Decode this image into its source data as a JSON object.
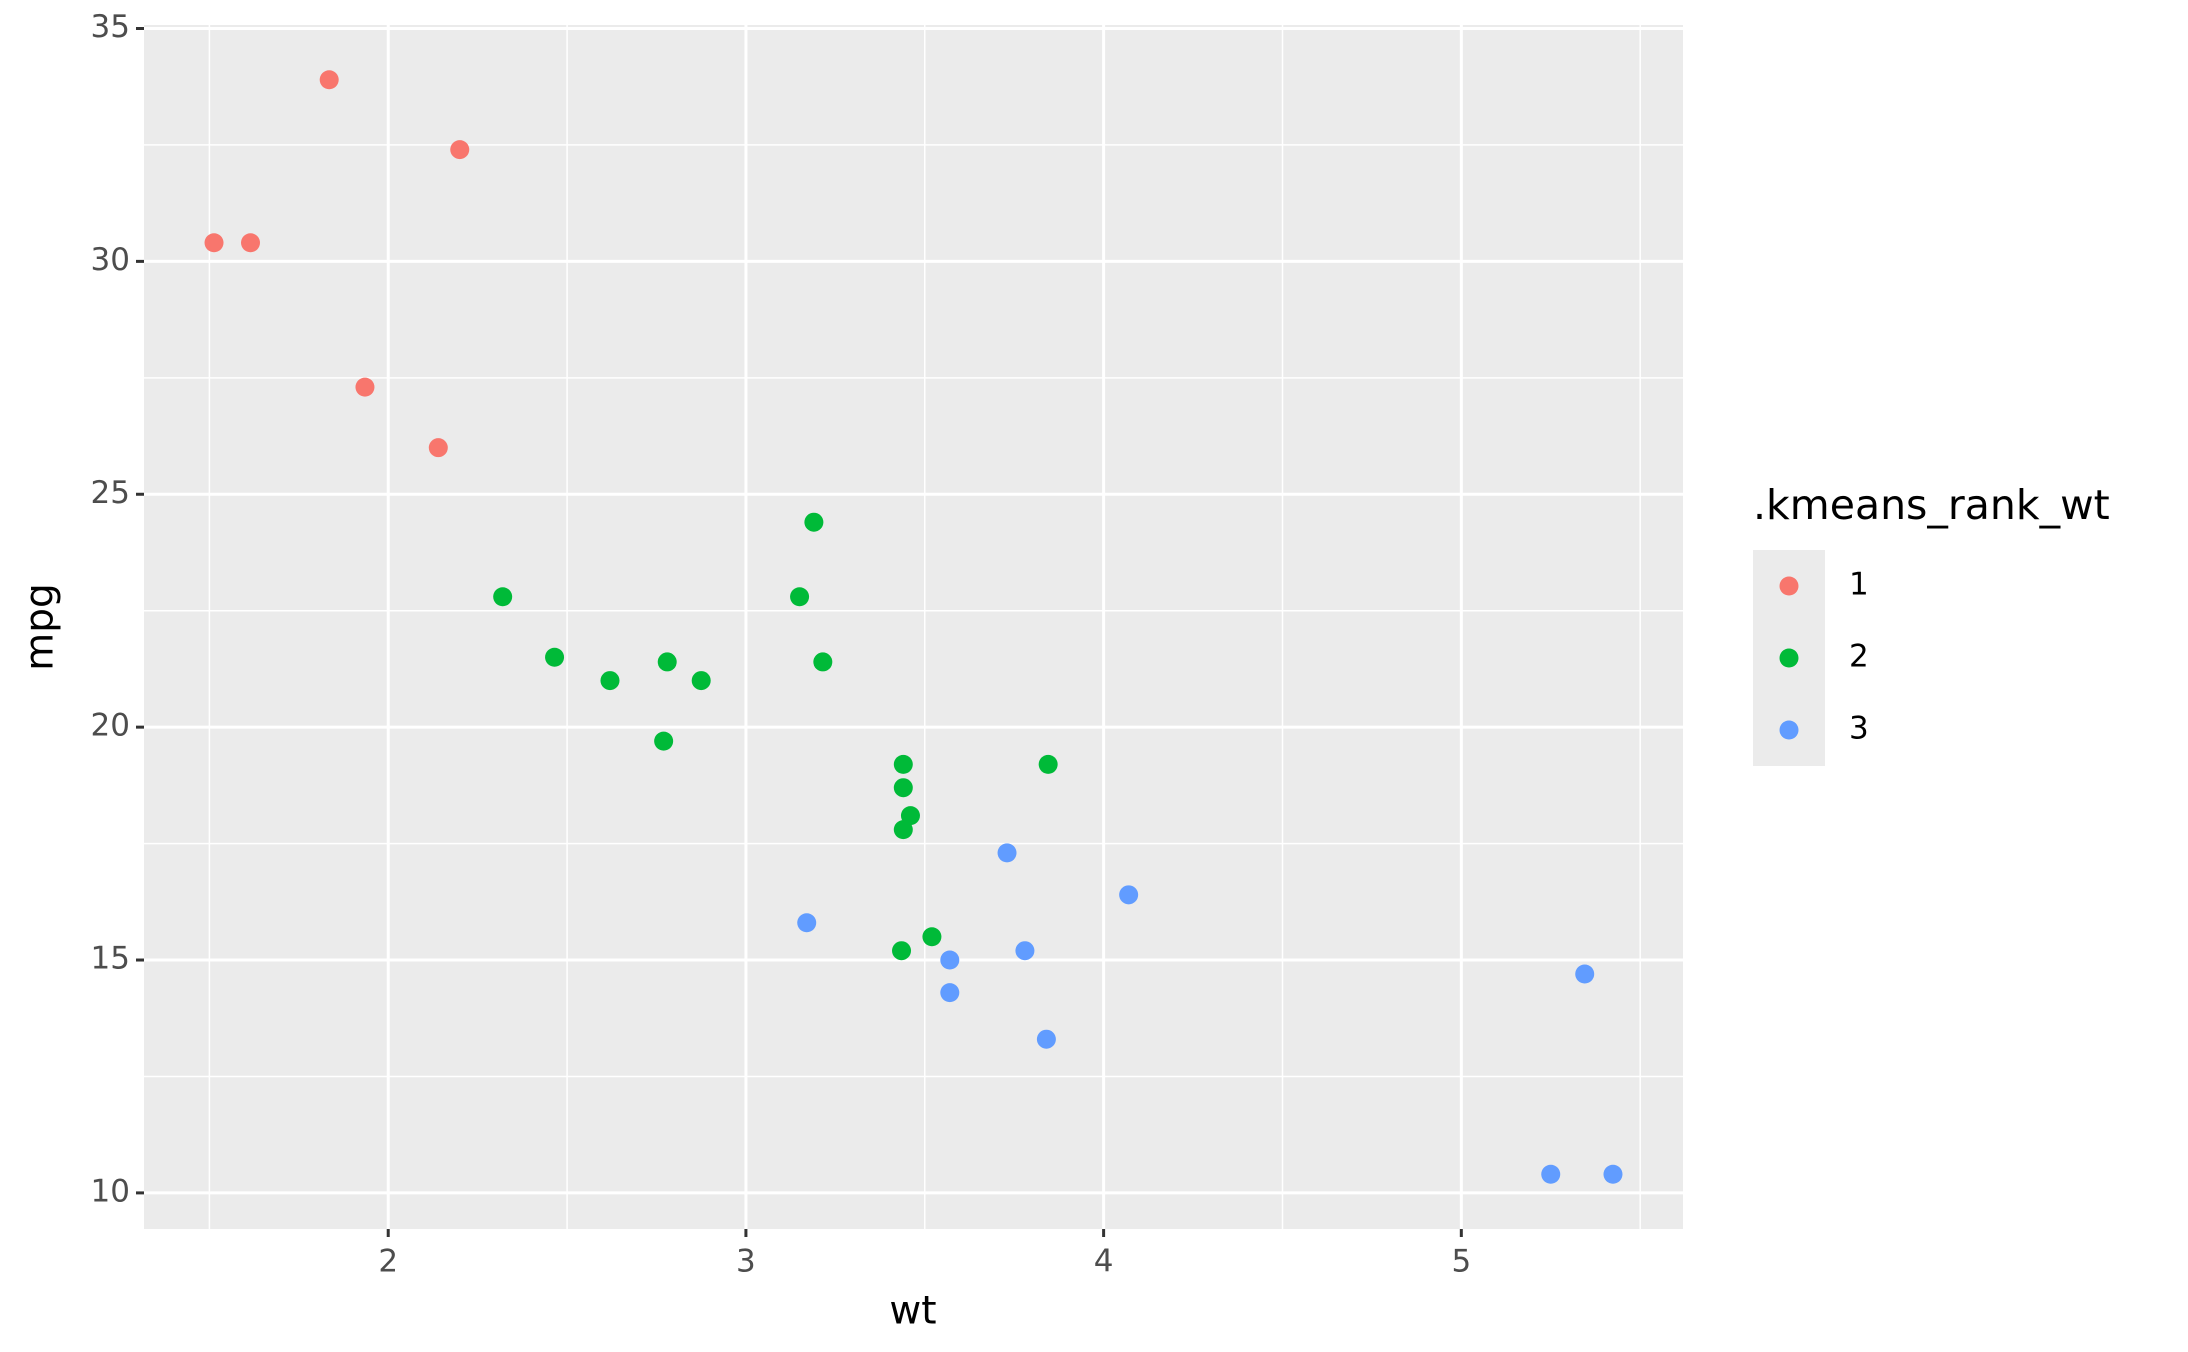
{
  "chart_data": {
    "type": "scatter",
    "x_label": "wt",
    "y_label": "mpg",
    "legend_title": ".kmeans_rank_wt",
    "xlim": [
      1.31725,
      5.61975
    ],
    "ylim": [
      9.225,
      35.075
    ],
    "xticks": [
      2,
      3,
      4,
      5
    ],
    "yticks": [
      10,
      15,
      20,
      25,
      30,
      35
    ],
    "xminor": [
      1.5,
      2.5,
      3.5,
      4.5,
      5.5
    ],
    "yminor": [
      12.5,
      17.5,
      22.5,
      27.5,
      32.5
    ],
    "grid": true,
    "legend": "right",
    "series": [
      {
        "name": "1",
        "color": "#F8766D",
        "x": [
          1.615,
          1.513,
          1.835,
          2.2,
          1.935,
          2.14
        ],
        "values": [
          30.4,
          30.4,
          33.9,
          32.4,
          27.3,
          26.0
        ]
      },
      {
        "name": "2",
        "color": "#00BA38",
        "x": [
          2.32,
          2.62,
          2.875,
          2.78,
          2.465,
          2.77,
          3.19,
          3.15,
          3.215,
          3.44,
          3.44,
          3.44,
          3.46,
          3.845,
          3.52,
          3.435
        ],
        "values": [
          22.8,
          21.0,
          21.0,
          21.4,
          21.5,
          19.7,
          24.4,
          22.8,
          21.4,
          19.2,
          17.8,
          18.7,
          18.1,
          19.2,
          15.5,
          15.2
        ]
      },
      {
        "name": "3",
        "color": "#619CFF",
        "x": [
          3.17,
          3.57,
          3.57,
          3.73,
          4.07,
          3.78,
          3.84,
          5.25,
          5.424,
          5.345
        ],
        "values": [
          15.8,
          14.3,
          15.0,
          17.3,
          16.4,
          15.2,
          13.3,
          10.4,
          10.4,
          14.7
        ]
      }
    ]
  }
}
